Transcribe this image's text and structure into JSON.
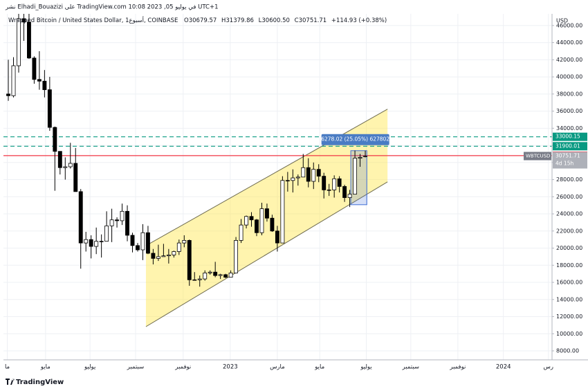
{
  "header": {
    "published": "نشر Elhadi_Bouazizi على TradingView.com 10:08 2023 ,05 في يوليو UTC+1",
    "legend": "Wrapped Bitcoin / United States Dollar, 1أسبوع, COINBASE",
    "ohlc": [
      "O30679.57",
      "H31379.86",
      "L30600.50",
      "C30751.71"
    ],
    "change": "+114.93 (+0.38%)"
  },
  "chart_data": {
    "type": "candlestick",
    "currency": "USD",
    "symbol": "WBTCUSD",
    "countdown": "4d 15h",
    "open": [
      38000,
      37800,
      41300,
      46800,
      46400,
      42200,
      39700,
      39500,
      38500,
      34100,
      31300,
      29400,
      29500,
      29900,
      26600,
      20600,
      21000,
      20200,
      20800,
      20800,
      22600,
      23300,
      23200,
      24300,
      21500,
      20300,
      19800,
      21800,
      19400,
      18800,
      19000,
      19100,
      19200,
      19600,
      20600,
      20900,
      16300,
      16300,
      16400,
      17100,
      17200,
      16800,
      16900,
      16600,
      17100,
      20900,
      22700,
      23700,
      23300,
      21800,
      24600,
      23500,
      22000,
      20600,
      27900,
      27900,
      28200,
      28300,
      29400,
      27800,
      29200,
      28400,
      26800,
      26800,
      28100,
      27200,
      25900,
      26300,
      30500,
      30679.57
    ],
    "high": [
      42000,
      42300,
      48200,
      48200,
      47400,
      42400,
      43000,
      40800,
      40000,
      34200,
      31300,
      30600,
      32300,
      31700,
      26900,
      21900,
      21500,
      22400,
      21600,
      24300,
      24600,
      23600,
      25200,
      25000,
      21800,
      20600,
      22800,
      22600,
      19900,
      20400,
      20500,
      19900,
      19700,
      21000,
      21500,
      21000,
      17200,
      16800,
      17400,
      17400,
      18400,
      17000,
      17000,
      17400,
      21300,
      23400,
      23800,
      24200,
      23400,
      25300,
      25200,
      23900,
      22600,
      28400,
      28900,
      29200,
      28600,
      31000,
      30500,
      30000,
      29800,
      28800,
      27500,
      28500,
      28400,
      27400,
      26800,
      31400,
      31000,
      31379.86
    ],
    "low": [
      37200,
      37600,
      40500,
      44200,
      42100,
      39200,
      38500,
      37600,
      33700,
      26700,
      28600,
      28000,
      29300,
      26600,
      17600,
      19600,
      18800,
      19300,
      18900,
      20800,
      20700,
      22400,
      22700,
      20800,
      19500,
      19600,
      18600,
      19300,
      18100,
      18500,
      19000,
      18200,
      18900,
      19200,
      20100,
      15600,
      16200,
      15500,
      16200,
      16900,
      16600,
      16400,
      16500,
      16600,
      17100,
      20600,
      22300,
      22500,
      21400,
      21500,
      23100,
      21900,
      19600,
      20600,
      26600,
      26500,
      27300,
      28300,
      27100,
      26900,
      27700,
      25800,
      26100,
      25900,
      26500,
      25400,
      24800,
      26300,
      29500,
      30600.5
    ],
    "close": [
      37800,
      41300,
      46800,
      46400,
      42200,
      39700,
      39500,
      38500,
      34100,
      31300,
      29400,
      29500,
      29900,
      26600,
      20600,
      21000,
      20200,
      20800,
      20800,
      22600,
      23300,
      23200,
      24300,
      21500,
      20300,
      19800,
      21800,
      19400,
      18800,
      19000,
      19100,
      19200,
      19600,
      20600,
      20900,
      16300,
      16300,
      16400,
      17100,
      17200,
      16800,
      16900,
      16600,
      17100,
      20900,
      22700,
      23700,
      23300,
      21800,
      24600,
      23500,
      22000,
      20600,
      27900,
      27900,
      28200,
      28300,
      29400,
      27800,
      29200,
      28400,
      26800,
      26800,
      28100,
      27200,
      25900,
      26300,
      30500,
      30600,
      30751.71
    ],
    "colors": {
      "up": "#ffffff",
      "down": "#000000",
      "border": "#000000"
    },
    "xlim": [
      -0.94,
      105.1
    ],
    "xticks": [
      {
        "value": -0.2,
        "label": "ما"
      },
      {
        "value": 7.2,
        "label": "مايو"
      },
      {
        "value": 15.8,
        "label": "يوليو"
      },
      {
        "value": 24.6,
        "label": "سبتمبر"
      },
      {
        "value": 33.8,
        "label": "نوفمبر"
      },
      {
        "value": 42.9,
        "label": "2023"
      },
      {
        "value": 52,
        "label": "مارس"
      },
      {
        "value": 60.2,
        "label": "مايو"
      },
      {
        "value": 69.2,
        "label": "يوليو"
      },
      {
        "value": 77.8,
        "label": "سبتمبر"
      },
      {
        "value": 86.9,
        "label": "نوفمبر"
      },
      {
        "value": 95.7,
        "label": "2024"
      },
      {
        "value": 104.4,
        "label": "رس"
      }
    ],
    "ylim": [
      6950,
      47200
    ],
    "yticks": [
      {
        "value": 8000,
        "label": "8000.00"
      },
      {
        "value": 10000,
        "label": "10000.00"
      },
      {
        "value": 12000,
        "label": "12000.00"
      },
      {
        "value": 14000,
        "label": "14000.00"
      },
      {
        "value": 16000,
        "label": "16000.00"
      },
      {
        "value": 18000,
        "label": "18000.00"
      },
      {
        "value": 20000,
        "label": "20000.00"
      },
      {
        "value": 22000,
        "label": "22000.00"
      },
      {
        "value": 24000,
        "label": "24000.00"
      },
      {
        "value": 26000,
        "label": "26000.00"
      },
      {
        "value": 28000,
        "label": "28000.00"
      },
      {
        "value": 30000,
        "label": "30000.00"
      },
      {
        "value": 32000,
        "label": "32000.00"
      },
      {
        "value": 34000,
        "label": "34000.00"
      },
      {
        "value": 36000,
        "label": "36000.00"
      },
      {
        "value": 38000,
        "label": "38000.00"
      },
      {
        "value": 40000,
        "label": "40000.00"
      },
      {
        "value": 42000,
        "label": "42000.00"
      },
      {
        "value": 44000,
        "label": "44000.00"
      },
      {
        "value": 46000,
        "label": "46000.00"
      }
    ],
    "grid": true,
    "hlines": [
      {
        "value": 33000.15,
        "color": "#089981",
        "dash": true
      },
      {
        "value": 31900.01,
        "color": "#089981",
        "dash": true
      },
      {
        "value": 30800.53,
        "color": "#f23645",
        "dash": false
      }
    ],
    "channel": {
      "x": [
        26.6,
        73.3
      ],
      "lower": [
        10830,
        27740
      ],
      "upper": [
        20290,
        36230
      ],
      "color": "#ffe74c"
    },
    "measure": {
      "x": [
        66.2,
        69.3
      ],
      "low": 25070,
      "high": 31380,
      "label": "6278.02 (25.05%) 627802",
      "color": "#3f6fd8"
    }
  },
  "footer": {
    "brand": "TradingView"
  }
}
